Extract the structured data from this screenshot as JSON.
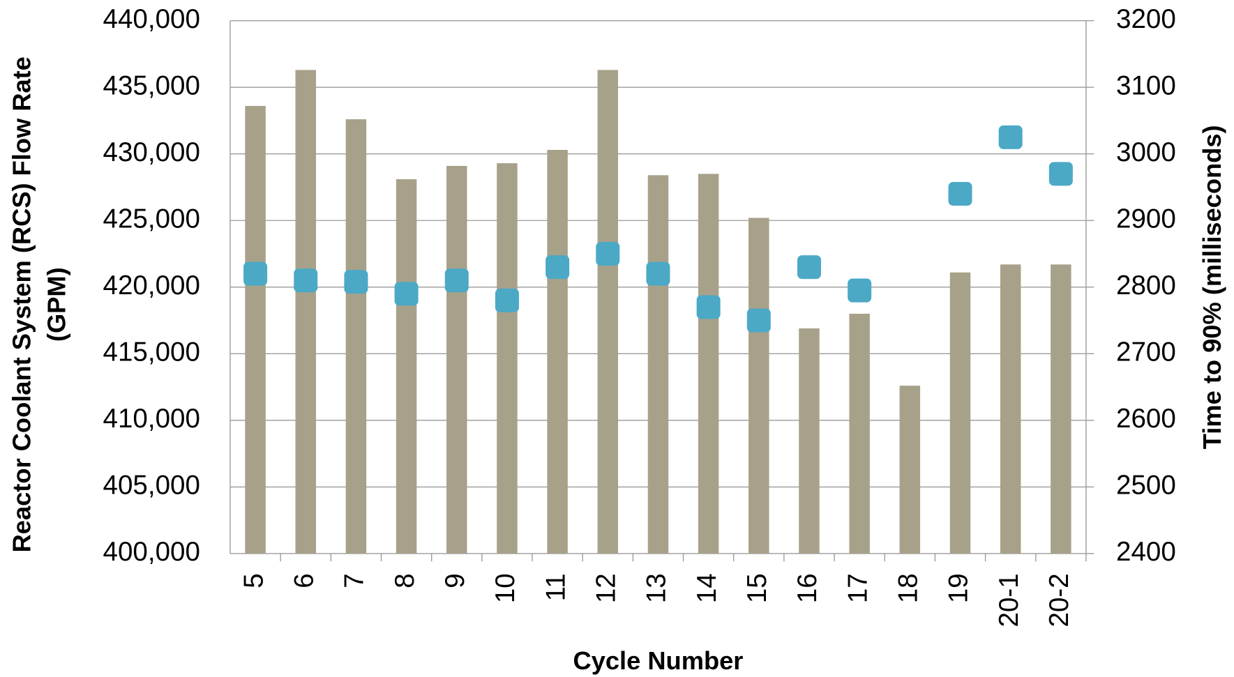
{
  "chart_data": {
    "type": "bar",
    "categories": [
      "5",
      "6",
      "7",
      "8",
      "9",
      "10",
      "11",
      "12",
      "13",
      "14",
      "15",
      "16",
      "17",
      "18",
      "19",
      "20-1",
      "20-2"
    ],
    "x_label": "Cycle Number",
    "y_label": [
      "Reactor Coolant System (RCS) Flow Rate",
      "(GPM)"
    ],
    "y2_label": "Time to 90% (milliseconds)",
    "ylim": [
      400000,
      440000
    ],
    "yticks": [
      {
        "value": 400000,
        "label": "400,000"
      },
      {
        "value": 405000,
        "label": "405,000"
      },
      {
        "value": 410000,
        "label": "410,000"
      },
      {
        "value": 415000,
        "label": "415,000"
      },
      {
        "value": 420000,
        "label": "420,000"
      },
      {
        "value": 425000,
        "label": "425,000"
      },
      {
        "value": 430000,
        "label": "430,000"
      },
      {
        "value": 435000,
        "label": "435,000"
      },
      {
        "value": 440000,
        "label": "440,000"
      }
    ],
    "y2lim": [
      2400,
      3200
    ],
    "y2ticks": [
      2400,
      2500,
      2600,
      2700,
      2800,
      2900,
      3000,
      3100,
      3200
    ],
    "grid": true,
    "series": [
      {
        "type": "bar",
        "color": "#a8a18a",
        "values": [
          433600,
          436300,
          432600,
          428100,
          429100,
          429300,
          430300,
          436300,
          428400,
          428500,
          425200,
          416900,
          418000,
          412600,
          421100,
          421700,
          421700
        ]
      },
      {
        "type": "scatter",
        "axis": "y2",
        "color": "#4ba9c6",
        "values": [
          2820,
          2810,
          2808,
          2790,
          2810,
          2780,
          2830,
          2850,
          2820,
          2770,
          2750,
          2830,
          2795,
          null,
          2940,
          3025,
          2970
        ]
      }
    ]
  }
}
